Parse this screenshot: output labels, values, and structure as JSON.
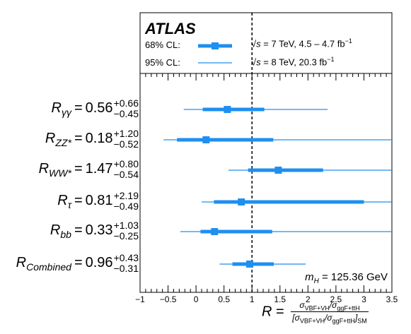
{
  "chart_data": {
    "type": "errorbar",
    "experiment": "ATLAS",
    "legend": {
      "cl68_label": "68% CL:",
      "cl95_label": "95% CL:",
      "run1": "= 7 TeV, 4.5 – 4.7 fb",
      "run2": "= 8 TeV, 20.3 fb",
      "sqrt_s": "√s",
      "inv": "−1"
    },
    "annotation": {
      "mh_symbol": "m",
      "mh_sub": "H",
      "mh_value": "= 125.36 GeV"
    },
    "xlim": [
      -1,
      3.5
    ],
    "xticks": [
      "−1",
      "−0.5",
      "0",
      "0.5",
      "1",
      "1.5",
      "2",
      "2.5",
      "3",
      "3.5"
    ],
    "reference_line": 1,
    "xlabel": {
      "symbol": "R",
      "num": "σ",
      "num_sub1": "VBF+VH",
      "num_mid": "/σ",
      "num_sub2": "ggF+ttH",
      "den": "[σ",
      "den_sub1": "VBF+VH",
      "den_mid": "/σ",
      "den_sub2": "ggF+ttH",
      "den_end": "]",
      "den_sub3": "SM"
    },
    "rows": [
      {
        "sym": "R",
        "sub": "γγ",
        "value": "0.56",
        "plus": "+0.66",
        "minus": "−0.45",
        "central": 0.56,
        "cl68": [
          0.12,
          1.22
        ],
        "cl95": [
          -0.22,
          2.35
        ]
      },
      {
        "sym": "R",
        "sub": "ZZ*",
        "value": "0.18",
        "plus": "+1.20",
        "minus": "−0.52",
        "central": 0.18,
        "cl68": [
          -0.34,
          1.38
        ],
        "cl95": [
          -0.58,
          3.5
        ]
      },
      {
        "sym": "R",
        "sub": "WW*",
        "value": "1.47",
        "plus": "+0.80",
        "minus": "−0.54",
        "central": 1.47,
        "cl68": [
          0.93,
          2.27
        ],
        "cl95": [
          0.58,
          3.5
        ]
      },
      {
        "sym": "R",
        "sub": "τ",
        "value": "0.81",
        "plus": "+2.19",
        "minus": "−0.49",
        "central": 0.81,
        "cl68": [
          0.32,
          3.0
        ],
        "cl95": [
          0.1,
          3.5
        ]
      },
      {
        "sym": "R",
        "sub": "bb",
        "value": "0.33",
        "plus": "+1.03",
        "minus": "−0.25",
        "central": 0.33,
        "cl68": [
          0.08,
          1.36
        ],
        "cl95": [
          -0.28,
          3.5
        ]
      },
      {
        "sym": "R",
        "sub": "Combined",
        "value": "0.96",
        "plus": "+0.43",
        "minus": "−0.31",
        "central": 0.96,
        "cl68": [
          0.65,
          1.39
        ],
        "cl95": [
          0.42,
          1.96
        ]
      }
    ],
    "colors": {
      "bar": "#1f8ff0",
      "line": "#000000"
    }
  }
}
